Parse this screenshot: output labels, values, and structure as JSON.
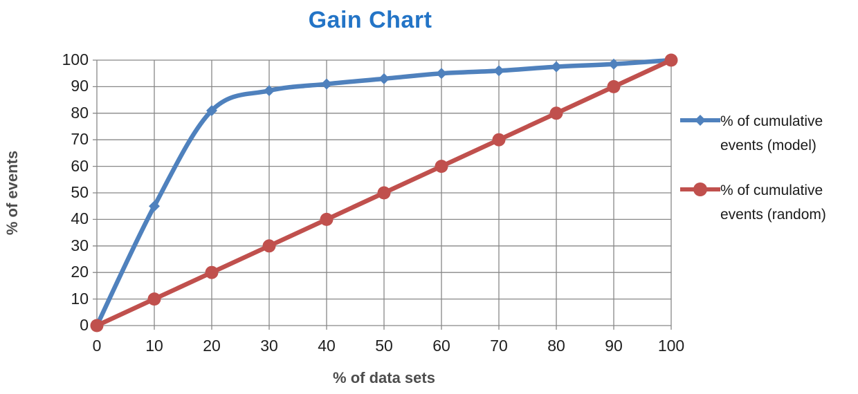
{
  "chart_data": {
    "type": "line",
    "title": "Gain Chart",
    "xlabel": "% of data sets",
    "ylabel": "% of events",
    "x": [
      0,
      10,
      20,
      30,
      40,
      50,
      60,
      70,
      80,
      90,
      100
    ],
    "series": [
      {
        "name": "% of cumulative events (model)",
        "values": [
          0,
          45,
          81,
          88.5,
          91,
          93,
          95,
          96,
          97.5,
          98.5,
          100
        ],
        "color": "#4f81bd",
        "marker": "diamond",
        "smooth": true
      },
      {
        "name": "% of cumulative events (random)",
        "values": [
          0,
          10,
          20,
          30,
          40,
          50,
          60,
          70,
          80,
          90,
          100
        ],
        "color": "#c0504d",
        "marker": "circle",
        "smooth": false
      }
    ],
    "xlim": [
      0,
      100
    ],
    "ylim": [
      0,
      100
    ],
    "x_ticks": [
      "0",
      "10",
      "20",
      "30",
      "40",
      "50",
      "60",
      "70",
      "80",
      "90",
      "100"
    ],
    "y_ticks": [
      "0",
      "10",
      "20",
      "30",
      "40",
      "50",
      "60",
      "70",
      "80",
      "90",
      "100"
    ],
    "grid": true,
    "legend_position": "right",
    "colors": {
      "title": "#2374c6",
      "grid": "#878787",
      "tick_text": "#1f1f1f",
      "axis_label_text": "#4d4d4d",
      "background": "#ffffff"
    }
  }
}
